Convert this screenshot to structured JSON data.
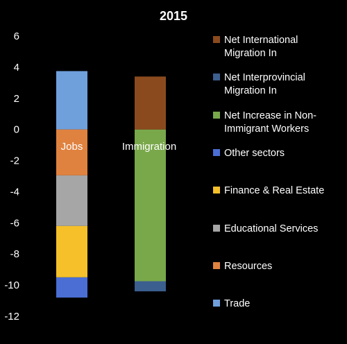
{
  "chart_data": {
    "type": "bar",
    "stacked": true,
    "title": "2015",
    "xlabel": "",
    "ylabel": "",
    "ylim": [
      -12,
      6
    ],
    "yticks": [
      6,
      4,
      2,
      0,
      -2,
      -4,
      -6,
      -8,
      -10,
      -12
    ],
    "grid": false,
    "legend_position": "right",
    "categories": [
      "Jobs",
      "Immigration"
    ],
    "series": [
      {
        "name": "Trade",
        "color": "#6fa0dc",
        "values": [
          3.75,
          0
        ]
      },
      {
        "name": "Resources",
        "color": "#e0823f",
        "values": [
          -2.95,
          0
        ]
      },
      {
        "name": "Educational Services",
        "color": "#a6a6a6",
        "values": [
          -3.25,
          0
        ]
      },
      {
        "name": "Finance & Real Estate",
        "color": "#f5c02a",
        "values": [
          -3.3,
          0
        ]
      },
      {
        "name": "Other sectors",
        "color": "#4a6ed4",
        "values": [
          -1.3,
          0
        ]
      },
      {
        "name": "Net Increase in Non-Immigrant Workers",
        "color": "#79a84b",
        "values": [
          0,
          -9.75
        ]
      },
      {
        "name": "Net Interprovincial Migration In",
        "color": "#3b5f8f",
        "values": [
          0,
          -0.65
        ]
      },
      {
        "name": "Net International Migration In",
        "color": "#8b4a1e",
        "values": [
          0,
          3.4
        ]
      }
    ],
    "legend_order": [
      "Net International Migration In",
      "Net Interprovincial Migration In",
      "Net Increase in Non-Immigrant Workers",
      "Other sectors",
      "Finance & Real Estate",
      "Educational Services",
      "Resources",
      "Trade"
    ],
    "legend_lines": {
      "Net International Migration In": [
        "Net International",
        "Migration In"
      ],
      "Net Interprovincial Migration In": [
        "Net Interprovincial",
        "Migration In"
      ],
      "Net Increase in Non-Immigrant Workers": [
        "Net Increase in Non-",
        "Immigrant Workers"
      ],
      "Other sectors": [
        "Other sectors"
      ],
      "Finance & Real Estate": [
        "Finance & Real Estate"
      ],
      "Educational Services": [
        "Educational Services"
      ],
      "Resources": [
        "Resources"
      ],
      "Trade": [
        "Trade"
      ]
    }
  }
}
